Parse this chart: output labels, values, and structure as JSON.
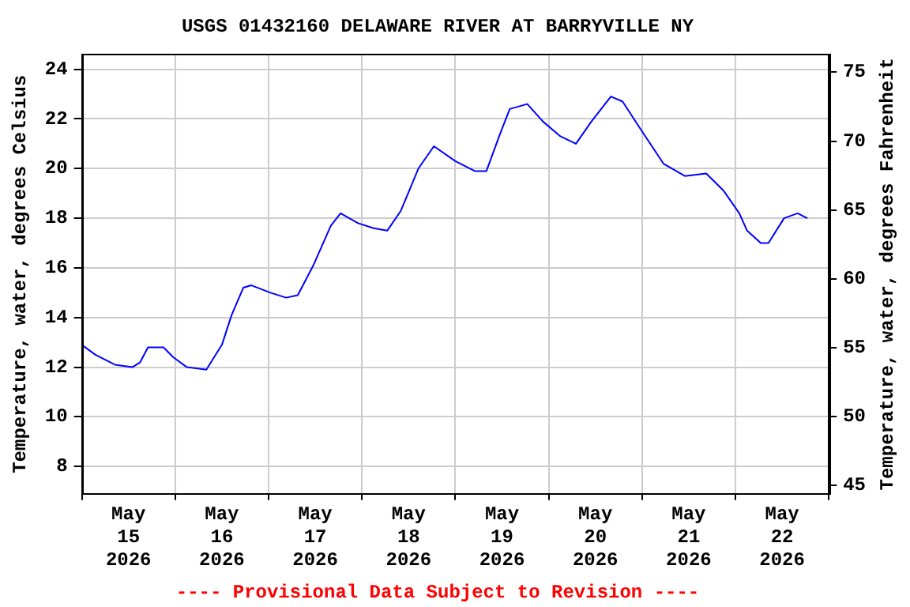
{
  "chart_data": {
    "type": "line",
    "title": "USGS 01432160 DELAWARE RIVER AT BARRYVILLE NY",
    "ylabel": "Temperature, water, degrees Celsius",
    "y2label": "Temperature, water, degrees Fahrenheit",
    "annotations": [
      "---- Provisional Data Subject to Revision ----"
    ],
    "x": [
      "2026-05-15T00:00",
      "2026-05-15T03:30",
      "2026-05-15T08:30",
      "2026-05-15T13:00",
      "2026-05-15T15:00",
      "2026-05-15T17:00",
      "2026-05-15T21:00",
      "2026-05-15T23:30",
      "2026-05-16T03:00",
      "2026-05-16T08:00",
      "2026-05-16T12:00",
      "2026-05-16T14:30",
      "2026-05-16T17:30",
      "2026-05-16T19:30",
      "2026-05-17T00:30",
      "2026-05-17T04:30",
      "2026-05-17T07:30",
      "2026-05-17T11:30",
      "2026-05-17T16:00",
      "2026-05-17T18:30",
      "2026-05-17T23:00",
      "2026-05-18T03:00",
      "2026-05-18T06:30",
      "2026-05-18T10:00",
      "2026-05-18T14:30",
      "2026-05-18T18:30",
      "2026-05-19T00:00",
      "2026-05-19T05:00",
      "2026-05-19T08:00",
      "2026-05-19T11:30",
      "2026-05-19T14:00",
      "2026-05-19T18:30",
      "2026-05-19T22:30",
      "2026-05-20T03:00",
      "2026-05-20T07:00",
      "2026-05-20T11:00",
      "2026-05-20T16:00",
      "2026-05-20T19:00",
      "2026-05-21T00:00",
      "2026-05-21T05:30",
      "2026-05-21T11:00",
      "2026-05-21T16:30",
      "2026-05-21T21:00",
      "2026-05-22T01:00",
      "2026-05-22T03:00",
      "2026-05-22T06:30",
      "2026-05-22T08:30",
      "2026-05-22T12:30",
      "2026-05-22T16:00",
      "2026-05-22T18:30"
    ],
    "series": [
      {
        "color": "#0000ff",
        "values": [
          12.9,
          12.5,
          12.1,
          12.0,
          12.2,
          12.8,
          12.8,
          12.4,
          12.0,
          11.9,
          12.9,
          14.1,
          15.2,
          15.3,
          15.0,
          14.8,
          14.9,
          16.1,
          17.7,
          18.2,
          17.8,
          17.6,
          17.5,
          18.3,
          20.0,
          20.9,
          20.3,
          19.9,
          19.9,
          21.4,
          22.4,
          22.6,
          21.9,
          21.3,
          21.0,
          21.9,
          22.9,
          22.7,
          21.5,
          20.2,
          19.7,
          19.8,
          19.1,
          18.2,
          17.5,
          17.0,
          17.0,
          18.0,
          18.2,
          18.0
        ]
      }
    ],
    "xlim": [
      "2026-05-15T00:00",
      "2026-05-23T00:00"
    ],
    "xticks": [
      {
        "value": "2026-05-15T00:00",
        "label": null
      },
      {
        "value": "2026-05-15T12:00",
        "label": "May 15 2026"
      },
      {
        "value": "2026-05-16T00:00",
        "label": null
      },
      {
        "value": "2026-05-16T12:00",
        "label": "May 16 2026"
      },
      {
        "value": "2026-05-17T00:00",
        "label": null
      },
      {
        "value": "2026-05-17T12:00",
        "label": "May 17 2026"
      },
      {
        "value": "2026-05-18T00:00",
        "label": null
      },
      {
        "value": "2026-05-18T12:00",
        "label": "May 18 2026"
      },
      {
        "value": "2026-05-19T00:00",
        "label": null
      },
      {
        "value": "2026-05-19T12:00",
        "label": "May 19 2026"
      },
      {
        "value": "2026-05-20T00:00",
        "label": null
      },
      {
        "value": "2026-05-20T12:00",
        "label": "May 20 2026"
      },
      {
        "value": "2026-05-21T00:00",
        "label": null
      },
      {
        "value": "2026-05-21T12:00",
        "label": "May 21 2026"
      },
      {
        "value": "2026-05-22T00:00",
        "label": null
      },
      {
        "value": "2026-05-22T12:00",
        "label": "May 22 2026"
      },
      {
        "value": "2026-05-23T00:00",
        "label": null
      }
    ],
    "ylim": [
      6.9,
      24.6
    ],
    "yticks": [
      8,
      10,
      12,
      14,
      16,
      18,
      20,
      22,
      24
    ],
    "y2lim": [
      44.4,
      76.3
    ],
    "y2ticks": [
      45,
      50,
      55,
      60,
      65,
      70,
      75
    ],
    "grid": true,
    "legend": false,
    "marker": "none",
    "line_style": "solid"
  }
}
